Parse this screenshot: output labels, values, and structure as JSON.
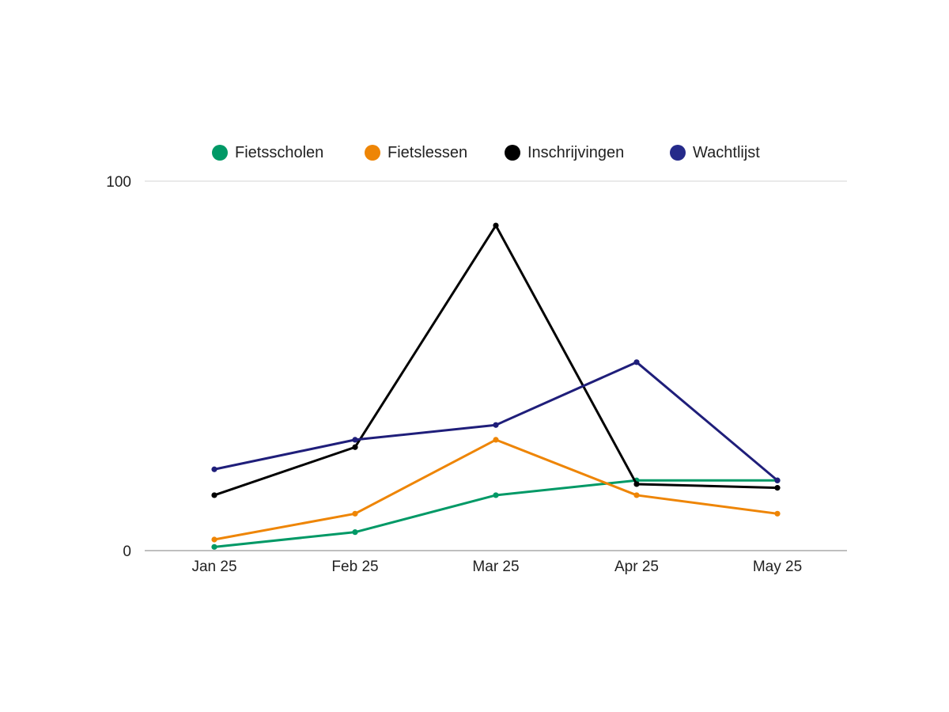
{
  "chart_data": {
    "type": "line",
    "title": "",
    "xlabel": "",
    "ylabel": "",
    "categories": [
      "Jan 25",
      "Feb 25",
      "Mar 25",
      "Apr 25",
      "May 25"
    ],
    "ylim": [
      0,
      100
    ],
    "y_ticks": [
      "0",
      "100"
    ],
    "grid": "horizontal",
    "legend_position": "top",
    "series": [
      {
        "name": "Fietsscholen",
        "color": "#009966",
        "values": [
          1,
          5,
          15,
          19,
          19
        ]
      },
      {
        "name": "Fietslessen",
        "color": "#EE8505",
        "values": [
          3,
          10,
          30,
          15,
          10
        ]
      },
      {
        "name": "Inschrijvingen",
        "color": "#000000",
        "values": [
          15,
          28,
          88,
          18,
          17
        ]
      },
      {
        "name": "Wachtlijst",
        "color": "#1F1E7A",
        "legend_color": "#252A8A",
        "values": [
          22,
          30,
          34,
          51,
          19
        ]
      }
    ]
  }
}
